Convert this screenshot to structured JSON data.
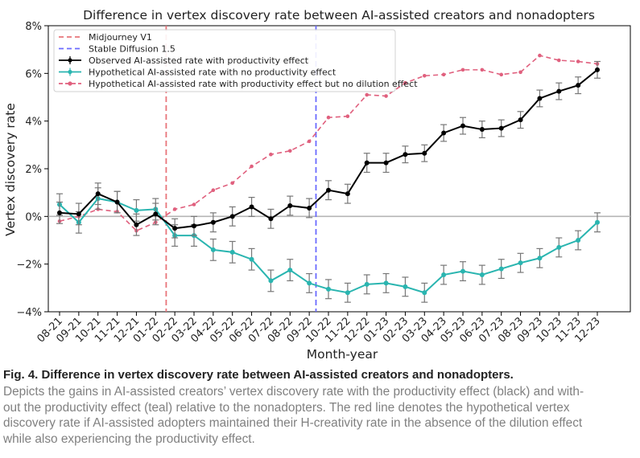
{
  "chart_data": {
    "type": "line",
    "title": "Difference in vertex discovery rate between AI-assisted creators and nonadopters",
    "xlabel": "Month-year",
    "ylabel": "Vertex discovery rate",
    "ylim": [
      -4,
      8
    ],
    "yticks": [
      "−4%",
      "−2%",
      "0%",
      "2%",
      "4%",
      "6%",
      "8%"
    ],
    "ytick_values": [
      -4,
      -2,
      0,
      2,
      4,
      6,
      8
    ],
    "categories": [
      "08-21",
      "09-21",
      "10-21",
      "11-21",
      "12-21",
      "01-22",
      "02-22",
      "03-22",
      "04-22",
      "05-22",
      "06-22",
      "07-22",
      "08-22",
      "09-22",
      "10-22",
      "11-22",
      "12-22",
      "01-23",
      "02-23",
      "03-23",
      "04-23",
      "05-23",
      "06-23",
      "07-23",
      "08-23",
      "09-23",
      "10-23",
      "11-23",
      "12-23"
    ],
    "legend_position": "top-left",
    "vlines": [
      {
        "name": "Midjourney V1",
        "x_index": 5.55,
        "color": "#e8757a"
      },
      {
        "name": "Stable Diffusion 1.5",
        "x_index": 13.35,
        "color": "#6b6bff"
      }
    ],
    "series": [
      {
        "name": "Observed AI-assisted rate with productivity effect",
        "color": "#000000",
        "style": "solid",
        "marker": "dot",
        "values": [
          0.15,
          0.1,
          0.95,
          0.6,
          -0.35,
          0.1,
          -0.5,
          -0.4,
          -0.25,
          0.0,
          0.4,
          -0.1,
          0.45,
          0.35,
          1.1,
          0.95,
          2.25,
          2.25,
          2.6,
          2.65,
          3.5,
          3.8,
          3.65,
          3.7,
          4.05,
          4.95,
          5.25,
          5.5,
          6.15
        ],
        "errors": [
          0.45,
          0.45,
          0.45,
          0.45,
          0.45,
          0.45,
          0.4,
          0.4,
          0.4,
          0.4,
          0.4,
          0.4,
          0.4,
          0.4,
          0.4,
          0.4,
          0.4,
          0.4,
          0.35,
          0.35,
          0.35,
          0.35,
          0.35,
          0.35,
          0.35,
          0.35,
          0.35,
          0.35,
          0.35
        ]
      },
      {
        "name": "Hypothetical AI-assisted rate with no productivity effect",
        "color": "#2ab5b0",
        "style": "solid",
        "marker": "dot",
        "values": [
          0.5,
          -0.25,
          0.75,
          0.6,
          0.25,
          0.3,
          -0.8,
          -0.8,
          -1.4,
          -1.5,
          -1.8,
          -2.7,
          -2.25,
          -2.8,
          -3.05,
          -3.2,
          -2.85,
          -2.8,
          -2.95,
          -3.2,
          -2.45,
          -2.3,
          -2.45,
          -2.2,
          -1.95,
          -1.75,
          -1.3,
          -1.0,
          -0.25
        ],
        "errors": [
          0.45,
          0.45,
          0.45,
          0.45,
          0.45,
          0.45,
          0.45,
          0.45,
          0.45,
          0.45,
          0.45,
          0.45,
          0.45,
          0.4,
          0.4,
          0.4,
          0.4,
          0.4,
          0.4,
          0.4,
          0.4,
          0.4,
          0.4,
          0.4,
          0.4,
          0.4,
          0.4,
          0.4,
          0.4
        ]
      },
      {
        "name": "Hypothetical AI-assisted rate with productivity effect but no dilution effect",
        "color": "#e0607e",
        "style": "dashed",
        "marker": "dot",
        "values": [
          -0.2,
          0.0,
          0.3,
          0.2,
          -0.6,
          -0.25,
          0.3,
          0.5,
          1.1,
          1.4,
          2.1,
          2.6,
          2.75,
          3.15,
          4.15,
          4.2,
          5.1,
          5.05,
          5.6,
          5.9,
          5.95,
          6.15,
          6.15,
          5.95,
          6.05,
          6.75,
          6.55,
          6.5,
          6.4
        ],
        "errors": []
      }
    ]
  },
  "caption": {
    "label": "Fig. 4. Difference in vertex discovery rate between AI-assisted creators and nonadopters.",
    "lines": [
      "Depicts the gains in AI-assisted creators’ vertex discovery rate with the productivity effect (black) and with-",
      "out the productivity effect (teal) relative to the nonadopters. The red line denotes the hypothetical vertex",
      "discovery rate if AI-assisted adopters maintained their H-creativity rate in the absence of the dilution effect",
      "while also experiencing the productivity effect."
    ]
  }
}
